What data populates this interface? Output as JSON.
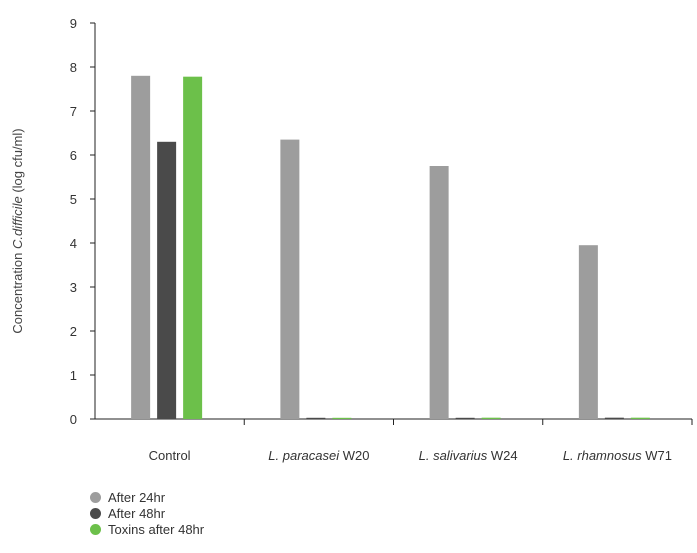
{
  "chart_data": {
    "type": "bar",
    "categories": [
      {
        "prefix": "",
        "italic": "",
        "suffix": "Control"
      },
      {
        "prefix": "",
        "italic": "L. paracasei",
        "suffix": " W20"
      },
      {
        "prefix": "",
        "italic": "L. salivarius",
        "suffix": " W24"
      },
      {
        "prefix": "",
        "italic": "L. rhamnosus",
        "suffix": " W71"
      }
    ],
    "series": [
      {
        "name": "After 24hr",
        "color": "#9d9d9d",
        "values": [
          7.8,
          6.35,
          5.75,
          3.95
        ]
      },
      {
        "name": "After 48hr",
        "color": "#4a4a4a",
        "values": [
          6.3,
          0.02,
          0.02,
          0.03
        ]
      },
      {
        "name": "Toxins after 48hr",
        "color": "#6cc04a",
        "values": [
          7.78,
          0.02,
          0.03,
          0.03
        ]
      }
    ],
    "ylabel": {
      "prefix": "Concentration ",
      "italic": "C.difficile",
      "suffix": " (log cfu/ml)"
    },
    "ylim": [
      0,
      9
    ],
    "yticks": [
      "0",
      "1",
      "2",
      "3",
      "4",
      "5",
      "6",
      "7",
      "8",
      "9"
    ],
    "grid": false,
    "legend_position": "bottom-left"
  }
}
